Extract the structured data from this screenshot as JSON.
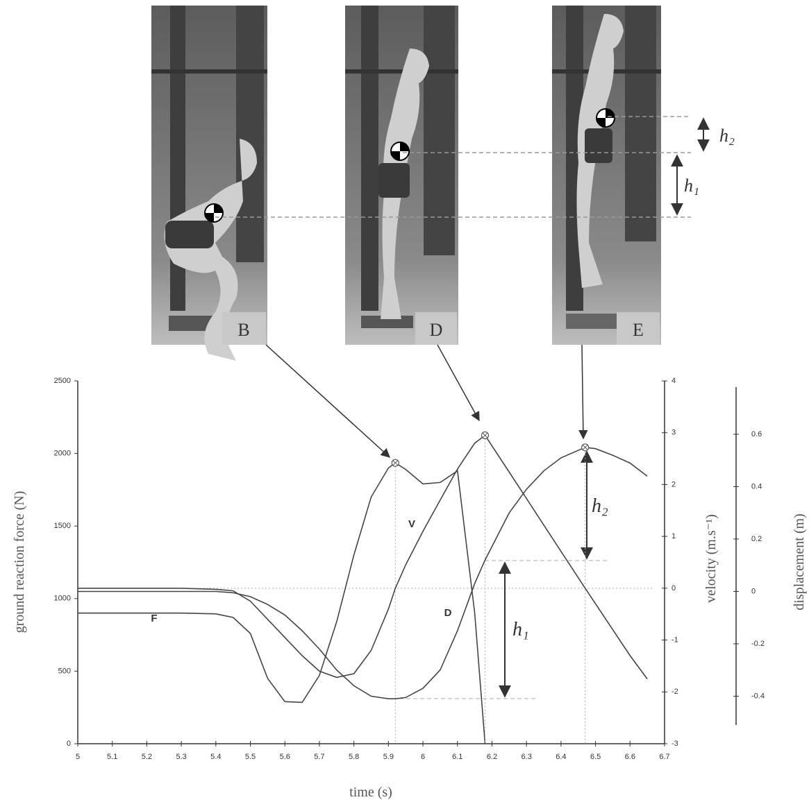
{
  "photos": [
    {
      "label": "B"
    },
    {
      "label": "D"
    },
    {
      "label": "E"
    }
  ],
  "photo_annotations": [
    "h₁",
    "h₂"
  ],
  "chart_data": {
    "type": "line",
    "x_label": "time (s)",
    "y_label": "ground reaction force (N)",
    "y2_label": "velocity (m.s⁻¹)",
    "y3_label": "displacement (m)",
    "annotations": [
      "h₁",
      "h₂"
    ],
    "x": [
      5.0,
      5.1,
      5.2,
      5.3,
      5.4,
      5.45,
      5.5,
      5.55,
      5.6,
      5.65,
      5.7,
      5.75,
      5.8,
      5.85,
      5.9,
      5.92,
      5.95,
      6.0,
      6.05,
      6.1,
      6.15,
      6.18,
      6.25,
      6.3,
      6.35,
      6.4,
      6.47,
      6.5,
      6.55,
      6.6,
      6.65
    ],
    "xlim": [
      5,
      6.7
    ],
    "xticks": [
      5,
      5.1,
      5.2,
      5.3,
      5.4,
      5.5,
      5.6,
      5.7,
      5.8,
      5.9,
      6,
      6.1,
      6.2,
      6.3,
      6.4,
      6.5,
      6.6,
      6.7
    ],
    "ylim": [
      0,
      2500
    ],
    "yticks": [
      0,
      500,
      1000,
      1500,
      2000,
      2500
    ],
    "y2lim": [
      -3,
      4
    ],
    "y2ticks": [
      -3,
      -2,
      -1,
      0,
      1,
      2,
      3,
      4
    ],
    "y3lim": [
      -0.51,
      0.78
    ],
    "y3ticks": [
      -0.4,
      -0.2,
      0,
      0.2,
      0.4,
      0.6
    ],
    "series": [
      {
        "name": "F",
        "color": "#444444",
        "values": [
          900,
          900,
          900,
          900,
          895,
          870,
          760,
          450,
          290,
          285,
          470,
          840,
          1300,
          1700,
          1900,
          1935,
          1890,
          1790,
          1800,
          1880,
          900,
          0,
          null,
          null,
          null,
          null,
          null,
          null,
          null,
          null,
          null
        ],
        "marker": {
          "x": 5.92,
          "value": 1935
        }
      },
      {
        "name": "V",
        "color": "#444444",
        "axis": "y2",
        "values": [
          0,
          0,
          0,
          0,
          -0.02,
          -0.05,
          -0.25,
          -0.6,
          -0.95,
          -1.3,
          -1.6,
          -1.72,
          -1.65,
          -1.2,
          -0.4,
          0,
          0.45,
          1.1,
          1.7,
          2.3,
          2.8,
          2.95,
          2.24,
          1.73,
          1.22,
          0.71,
          0,
          -0.3,
          -0.8,
          -1.3,
          -1.75
        ],
        "marker": {
          "x": 6.18,
          "value": 2.95
        }
      },
      {
        "name": "D",
        "color": "#444444",
        "axis": "y3",
        "values": [
          0,
          0,
          0,
          0,
          0,
          -0.005,
          -0.02,
          -0.05,
          -0.09,
          -0.15,
          -0.22,
          -0.3,
          -0.36,
          -0.4,
          -0.41,
          -0.41,
          -0.405,
          -0.37,
          -0.3,
          -0.15,
          0.03,
          0.12,
          0.3,
          0.39,
          0.46,
          0.51,
          0.55,
          0.545,
          0.52,
          0.49,
          0.44
        ],
        "marker": {
          "x": 6.47,
          "value": 0.55
        }
      }
    ]
  }
}
